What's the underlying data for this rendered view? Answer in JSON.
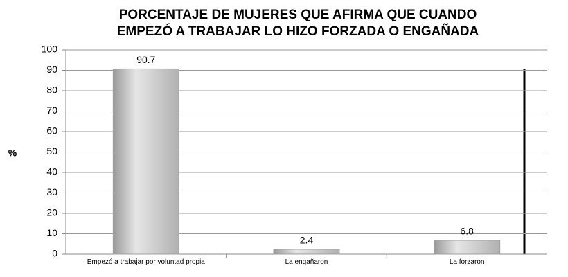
{
  "chart_data": {
    "type": "bar",
    "title": [
      "PORCENTAJE DE MUJERES QUE AFIRMA QUE CUANDO",
      "EMPEZÓ A TRABAJAR LO HIZO FORZADA O ENGAÑADA"
    ],
    "y_label": "%",
    "categories": [
      "Empezó a trabajar por voluntad propia",
      "La engañaron",
      "La forzaron"
    ],
    "values": [
      90.7,
      2.4,
      6.8
    ],
    "color": "#c8c8c8",
    "ylim": [
      0,
      100
    ],
    "yticks": [
      0,
      10,
      20,
      30,
      40,
      50,
      60,
      70,
      80,
      90,
      100
    ],
    "grid": true
  }
}
